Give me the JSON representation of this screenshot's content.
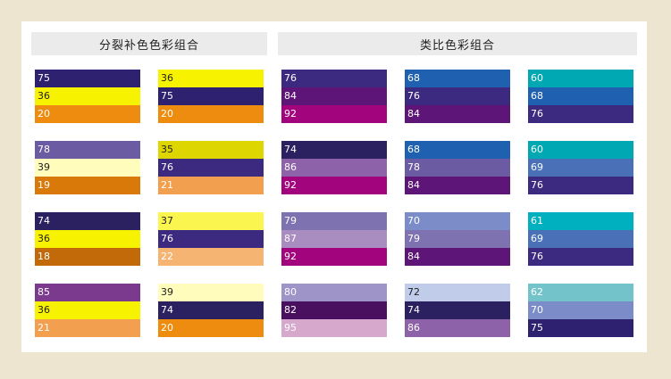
{
  "headers": {
    "split_complementary": "分裂补色色彩组合",
    "analogous": "类比色彩组合"
  },
  "groups": [
    {
      "id": "split",
      "columns": [
        [
          [
            {
              "label": "75",
              "color": "#2E2270"
            },
            {
              "label": "36",
              "color": "#F6F200"
            },
            {
              "label": "20",
              "color": "#EE8C10"
            }
          ],
          [
            {
              "label": "78",
              "color": "#6B5BA3"
            },
            {
              "label": "39",
              "color": "#FFFCBC"
            },
            {
              "label": "19",
              "color": "#D8790A"
            }
          ],
          [
            {
              "label": "74",
              "color": "#2B2060"
            },
            {
              "label": "36",
              "color": "#F6F200"
            },
            {
              "label": "18",
              "color": "#C2690A"
            }
          ],
          [
            {
              "label": "85",
              "color": "#7B3A8D"
            },
            {
              "label": "36",
              "color": "#F6F200"
            },
            {
              "label": "21",
              "color": "#F2A050"
            }
          ]
        ],
        [
          [
            {
              "label": "36",
              "color": "#F6F200"
            },
            {
              "label": "75",
              "color": "#2E2270"
            },
            {
              "label": "20",
              "color": "#EE8C10"
            }
          ],
          [
            {
              "label": "35",
              "color": "#DED600"
            },
            {
              "label": "76",
              "color": "#3C2A80"
            },
            {
              "label": "21",
              "color": "#F2A050"
            }
          ],
          [
            {
              "label": "37",
              "color": "#FBF550"
            },
            {
              "label": "76",
              "color": "#3C2A80"
            },
            {
              "label": "22",
              "color": "#F6B473"
            }
          ],
          [
            {
              "label": "39",
              "color": "#FFFCBC"
            },
            {
              "label": "74",
              "color": "#2B2060"
            },
            {
              "label": "20",
              "color": "#EE8C10"
            }
          ]
        ]
      ]
    },
    {
      "id": "analog",
      "columns": [
        [
          [
            {
              "label": "76",
              "color": "#3C2A80"
            },
            {
              "label": "84",
              "color": "#5E1578"
            },
            {
              "label": "92",
              "color": "#A2047E"
            }
          ],
          [
            {
              "label": "74",
              "color": "#2B2060"
            },
            {
              "label": "86",
              "color": "#8D62A8"
            },
            {
              "label": "92",
              "color": "#A2047E"
            }
          ],
          [
            {
              "label": "79",
              "color": "#7F72B0"
            },
            {
              "label": "87",
              "color": "#A98CC0"
            },
            {
              "label": "92",
              "color": "#A2047E"
            }
          ],
          [
            {
              "label": "80",
              "color": "#9E94C8"
            },
            {
              "label": "82",
              "color": "#4A1060"
            },
            {
              "label": "95",
              "color": "#D5A8CC"
            }
          ]
        ],
        [
          [
            {
              "label": "68",
              "color": "#2060B0"
            },
            {
              "label": "76",
              "color": "#3C2A80"
            },
            {
              "label": "84",
              "color": "#5E1578"
            }
          ],
          [
            {
              "label": "68",
              "color": "#2060B0"
            },
            {
              "label": "78",
              "color": "#6B5BA3"
            },
            {
              "label": "84",
              "color": "#5E1578"
            }
          ],
          [
            {
              "label": "70",
              "color": "#7B8CC8"
            },
            {
              "label": "79",
              "color": "#7F72B0"
            },
            {
              "label": "84",
              "color": "#5E1578"
            }
          ],
          [
            {
              "label": "72",
              "color": "#C0CCEA"
            },
            {
              "label": "74",
              "color": "#2B2060"
            },
            {
              "label": "86",
              "color": "#8D62A8"
            }
          ]
        ],
        [
          [
            {
              "label": "60",
              "color": "#00A8B4"
            },
            {
              "label": "68",
              "color": "#2060B0"
            },
            {
              "label": "76",
              "color": "#3C2A80"
            }
          ],
          [
            {
              "label": "60",
              "color": "#00A8B4"
            },
            {
              "label": "69",
              "color": "#4A70B8"
            },
            {
              "label": "76",
              "color": "#3C2A80"
            }
          ],
          [
            {
              "label": "61",
              "color": "#00B0BE"
            },
            {
              "label": "69",
              "color": "#4A70B8"
            },
            {
              "label": "76",
              "color": "#3C2A80"
            }
          ],
          [
            {
              "label": "62",
              "color": "#72C4CA"
            },
            {
              "label": "70",
              "color": "#7B8CC8"
            },
            {
              "label": "75",
              "color": "#2E2270"
            }
          ]
        ]
      ]
    }
  ],
  "light_colors": [
    "#F6F200",
    "#FFFCBC",
    "#DED600",
    "#FBF550",
    "#C0CCEA"
  ]
}
